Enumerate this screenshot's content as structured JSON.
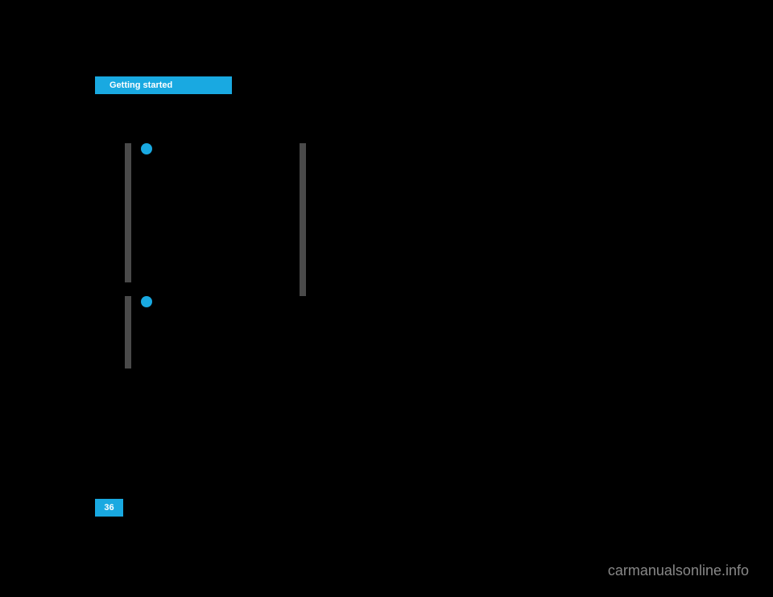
{
  "header": {
    "tab_label": "Getting started",
    "tab_background_color": "#19a9e1",
    "tab_text_color": "#ffffff"
  },
  "page": {
    "background_color": "#000000",
    "number": "36",
    "number_box_color": "#19a9e1",
    "number_text_color": "#ffffff"
  },
  "content_bars": {
    "bar_color": "#4a4a4a",
    "bullet_color": "#19a9e1"
  },
  "watermark": {
    "text": "carmanualsonline.info",
    "color": "#888888"
  }
}
